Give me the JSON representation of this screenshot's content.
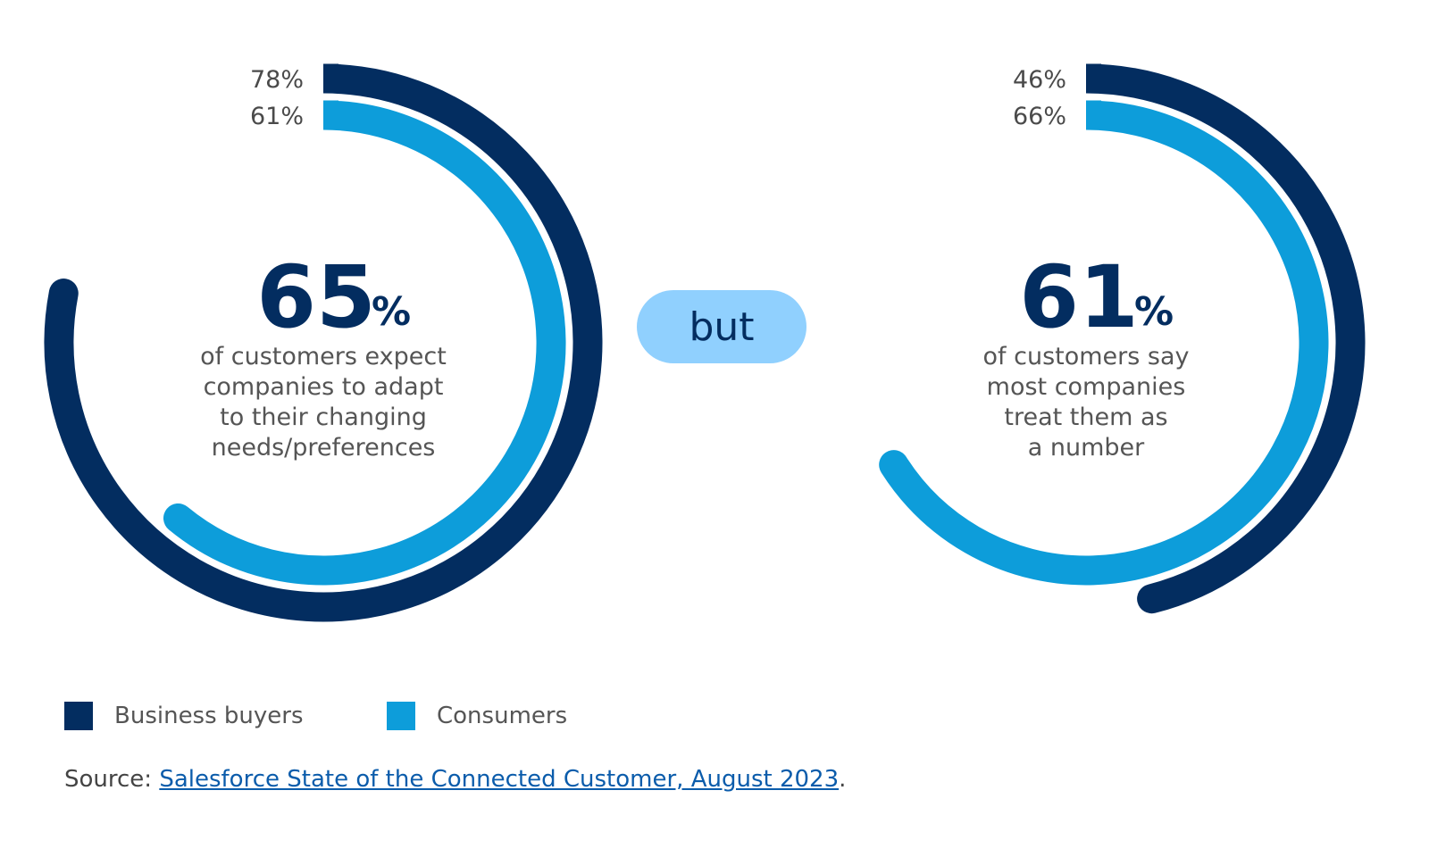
{
  "colors": {
    "business": "#032d60",
    "consumers": "#0d9dda",
    "pill": "#90d0fe"
  },
  "chart_data": [
    {
      "type": "radial-bar",
      "headline": "65",
      "headline_unit": "%",
      "description_lines": [
        "of customers expect",
        "companies to adapt",
        "to their changing",
        "needs/preferences"
      ],
      "series": [
        {
          "name": "Business buyers",
          "value": 78,
          "label": "78%"
        },
        {
          "name": "Consumers",
          "value": 61,
          "label": "61%"
        }
      ]
    },
    {
      "type": "radial-bar",
      "headline": "61",
      "headline_unit": "%",
      "description_lines": [
        "of customers say",
        "most companies",
        "treat them as",
        "a number"
      ],
      "series": [
        {
          "name": "Business buyers",
          "value": 46,
          "label": "46%"
        },
        {
          "name": "Consumers",
          "value": 66,
          "label": "66%"
        }
      ]
    }
  ],
  "connector": "but",
  "legend": [
    {
      "name": "Business buyers",
      "color": "#032d60"
    },
    {
      "name": "Consumers",
      "color": "#0d9dda"
    }
  ],
  "source": {
    "prefix": "Source: ",
    "link_text": "Salesforce State of the Connected Customer, August 2023",
    "suffix": "."
  }
}
